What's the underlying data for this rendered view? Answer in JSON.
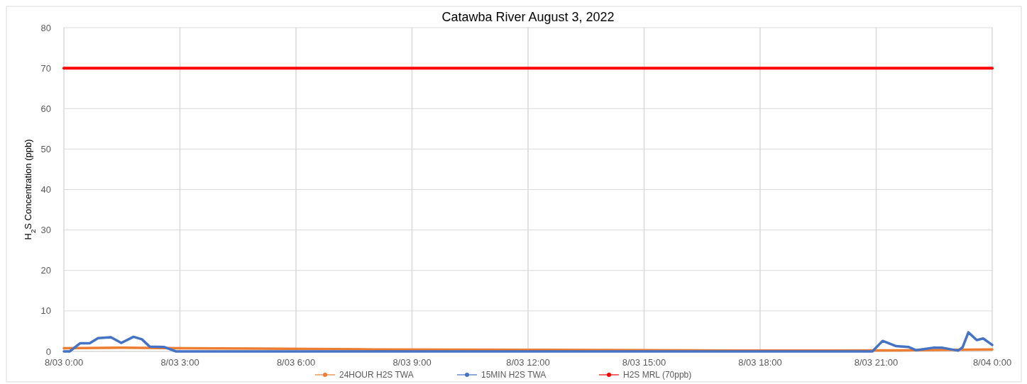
{
  "chart_data": {
    "type": "line",
    "title": "Catawba River August 3, 2022",
    "ylabel": "H$_{2}$S Concentration (ppb)",
    "xlim": [
      "2022-08-03T00:00",
      "2022-08-04T00:00"
    ],
    "xticks": [
      {
        "value": "2022-08-03T00:00",
        "label": "8/03 0:00"
      },
      {
        "value": "2022-08-03T03:00",
        "label": "8/03 3:00"
      },
      {
        "value": "2022-08-03T06:00",
        "label": "8/03 6:00"
      },
      {
        "value": "2022-08-03T09:00",
        "label": "8/03 9:00"
      },
      {
        "value": "2022-08-03T12:00",
        "label": "8/03 12:00"
      },
      {
        "value": "2022-08-03T15:00",
        "label": "8/03 15:00"
      },
      {
        "value": "2022-08-03T18:00",
        "label": "8/03 18:00"
      },
      {
        "value": "2022-08-03T21:00",
        "label": "8/03 21:00"
      },
      {
        "value": "2022-08-04T00:00",
        "label": "8/04 0:00"
      }
    ],
    "ylim": [
      0,
      80
    ],
    "yticks": [
      0,
      10,
      20,
      30,
      40,
      50,
      60,
      70,
      80
    ],
    "grid": true,
    "legend": "bottom",
    "marker": "none",
    "line_style": "solid",
    "series": [
      {
        "name": "24HOUR H2S TWA",
        "color": "#ed7d31",
        "x": [
          "2022-08-03T00:00",
          "2022-08-03T01:30",
          "2022-08-03T03:00",
          "2022-08-03T05:00",
          "2022-08-03T08:00",
          "2022-08-03T12:00",
          "2022-08-03T15:00",
          "2022-08-03T18:00",
          "2022-08-03T20:00",
          "2022-08-03T22:00",
          "2022-08-04T00:00"
        ],
        "values": [
          0.8,
          0.9,
          0.8,
          0.7,
          0.5,
          0.4,
          0.3,
          0.2,
          0.2,
          0.3,
          0.5
        ]
      },
      {
        "name": "15MIN H2S TWA",
        "color": "#4472c4",
        "x": [
          "2022-08-03T00:00",
          "2022-08-03T00:09",
          "2022-08-03T00:25",
          "2022-08-03T00:40",
          "2022-08-03T00:53",
          "2022-08-03T01:13",
          "2022-08-03T01:29",
          "2022-08-03T01:48",
          "2022-08-03T02:01",
          "2022-08-03T02:13",
          "2022-08-03T02:35",
          "2022-08-03T02:54",
          "2022-08-03T20:54",
          "2022-08-03T21:10",
          "2022-08-03T21:31",
          "2022-08-03T21:50",
          "2022-08-03T22:02",
          "2022-08-03T22:28",
          "2022-08-03T22:43",
          "2022-08-03T23:07",
          "2022-08-03T23:14",
          "2022-08-03T23:23",
          "2022-08-03T23:36",
          "2022-08-03T23:46",
          "2022-08-04T00:00"
        ],
        "values": [
          0,
          0,
          2,
          2,
          3.3,
          3.5,
          2.1,
          3.6,
          3,
          1.2,
          1.1,
          0,
          0,
          2.6,
          1.3,
          1.1,
          0.3,
          0.9,
          0.9,
          0.2,
          1,
          4.7,
          2.8,
          3.2,
          1.6
        ]
      },
      {
        "name": "H2S MRL (70ppb)",
        "color": "#ff0000",
        "x": [
          "2022-08-03T00:00",
          "2022-08-04T00:00"
        ],
        "values": [
          70,
          70
        ]
      }
    ]
  }
}
